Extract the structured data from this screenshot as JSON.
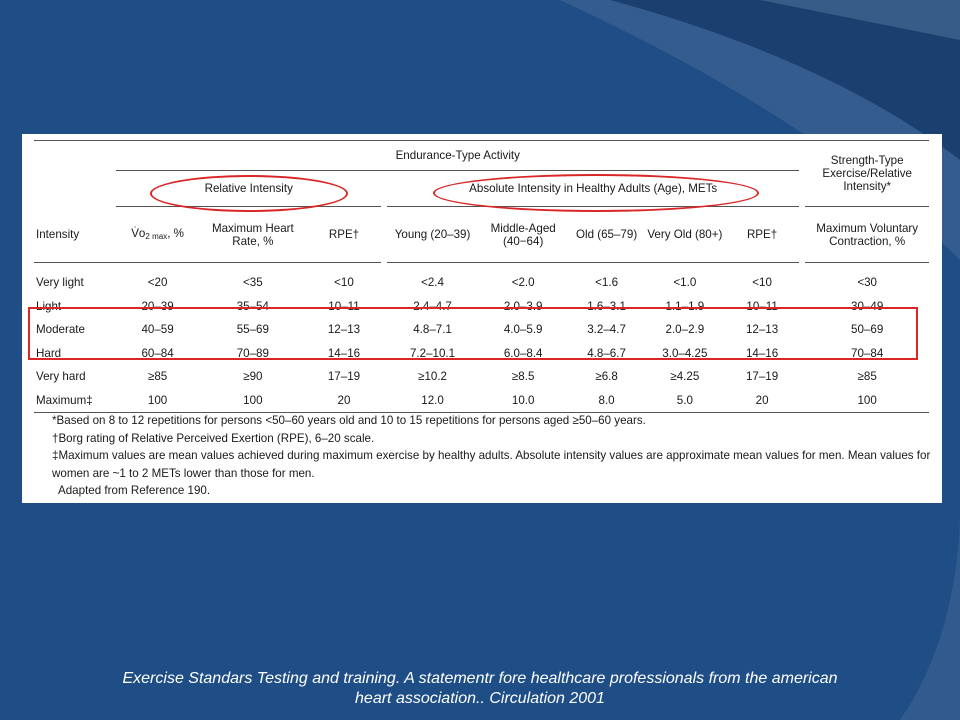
{
  "slide": {
    "background": "#1f4e87",
    "accent_dark": "#163a6a",
    "accent_light": "#3a5f8f",
    "highlight_color": "#d92626"
  },
  "table": {
    "group_endurance": "Endurance-Type Activity",
    "group_strength": "Strength-Type Exercise/Relative Intensity*",
    "sub_relative": "Relative Intensity",
    "sub_absolute": "Absolute Intensity in Healthy Adults (Age), METs",
    "columns": {
      "intensity": "Intensity",
      "vo2_prefix": "V̇o",
      "vo2_sub": "2 max",
      "vo2_suffix": ", %",
      "max_hr": "Maximum Heart Rate, %",
      "rpe": "RPE†",
      "young": "Young (20–39)",
      "middle": "Middle-Aged (40−64)",
      "old": "Old (65–79)",
      "very_old": "Very Old (80+)",
      "rpe2": "RPE†",
      "mvc": "Maximum Voluntary Contraction, %"
    },
    "rows": [
      {
        "label": "Very light",
        "vo2": "<20",
        "hr": "<35",
        "rpe": "<10",
        "young": "<2.4",
        "middle": "<2.0",
        "old": "<1.6",
        "very_old": "<1.0",
        "rpe2": "<10",
        "mvc": "<30"
      },
      {
        "label": "Light",
        "vo2": "20–39",
        "hr": "35–54",
        "rpe": "10–11",
        "young": "2.4–4.7",
        "middle": "2.0–3.9",
        "old": "1.6–3.1",
        "very_old": "1.1–1.9",
        "rpe2": "10–11",
        "mvc": "30–49"
      },
      {
        "label": "Moderate",
        "vo2": "40–59",
        "hr": "55–69",
        "rpe": "12–13",
        "young": "4.8–7.1",
        "middle": "4.0–5.9",
        "old": "3.2–4.7",
        "very_old": "2.0–2.9",
        "rpe2": "12–13",
        "mvc": "50–69"
      },
      {
        "label": "Hard",
        "vo2": "60–84",
        "hr": "70–89",
        "rpe": "14–16",
        "young": "7.2–10.1",
        "middle": "6.0–8.4",
        "old": "4.8–6.7",
        "very_old": "3.0–4.25",
        "rpe2": "14–16",
        "mvc": "70–84"
      },
      {
        "label": "Very hard",
        "vo2": "≥85",
        "hr": "≥90",
        "rpe": "17–19",
        "young": "≥10.2",
        "middle": "≥8.5",
        "old": "≥6.8",
        "very_old": "≥4.25",
        "rpe2": "17–19",
        "mvc": "≥85"
      },
      {
        "label": "Maximum‡",
        "vo2": "100",
        "hr": "100",
        "rpe": "20",
        "young": "12.0",
        "middle": "10.0",
        "old": "8.0",
        "very_old": "5.0",
        "rpe2": "20",
        "mvc": "100"
      }
    ],
    "footnotes": [
      "*Based on 8 to 12 repetitions for persons <50–60 years old and 10 to 15 repetitions for persons aged ≥50–60 years.",
      "†Borg rating of Relative Perceived Exertion (RPE), 6–20 scale.",
      "‡Maximum values are mean values achieved during maximum exercise by healthy adults. Absolute intensity values are approximate mean values for men. Mean values for women are ~1 to 2 METs lower than those for men.",
      "Adapted from Reference 190."
    ]
  },
  "caption": {
    "line1": "Exercise Standars Testing and training. A statementr fore healthcare professionals from the american",
    "line2": "heart association.. Circulation 2001"
  }
}
